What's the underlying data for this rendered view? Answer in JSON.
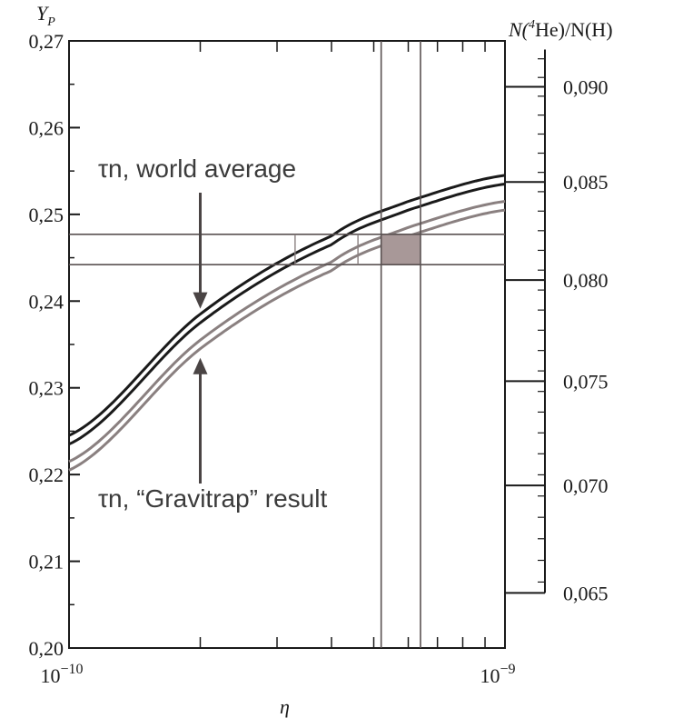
{
  "chart_data": {
    "type": "line",
    "x_scale": "log",
    "xlim": [
      1e-10,
      1e-09
    ],
    "ylim": [
      0.2,
      0.27
    ],
    "xlabel": "η",
    "ylabel": "Y_P",
    "y2label": "N(4He)/N(H)",
    "x_ticks": [
      {
        "value": 1e-10,
        "label": "10",
        "exp": "−10"
      },
      {
        "value": 1e-09,
        "label": "10",
        "exp": "−9"
      }
    ],
    "y_ticks": [
      "0,20",
      "0,21",
      "0,22",
      "0,23",
      "0,24",
      "0,25",
      "0,26",
      "0,27"
    ],
    "y_tick_values": [
      0.2,
      0.21,
      0.22,
      0.23,
      0.24,
      0.25,
      0.26,
      0.27
    ],
    "y2_ticks": [
      "0,065",
      "0,070",
      "0,075",
      "0,080",
      "0,085",
      "0,090"
    ],
    "y2_tick_values": [
      0.065,
      0.07,
      0.075,
      0.08,
      0.085,
      0.09
    ],
    "grid": false,
    "series": [
      {
        "color": "#1a1a1a",
        "x": [
          1e-10,
          2e-10,
          4e-10,
          6e-10,
          1e-09
        ],
        "values": [
          0.2245,
          0.2385,
          0.2475,
          0.2515,
          0.2545
        ]
      },
      {
        "color": "#1a1a1a",
        "x": [
          1e-10,
          2e-10,
          4e-10,
          6e-10,
          1e-09
        ],
        "values": [
          0.2235,
          0.2375,
          0.2465,
          0.2505,
          0.2535
        ]
      },
      {
        "color": "#8a8080",
        "x": [
          1e-10,
          2e-10,
          4e-10,
          6e-10,
          1e-09
        ],
        "values": [
          0.2215,
          0.2355,
          0.2445,
          0.2485,
          0.2515
        ]
      },
      {
        "color": "#8a8080",
        "x": [
          1e-10,
          2e-10,
          4e-10,
          6e-10,
          1e-09
        ],
        "values": [
          0.2205,
          0.2345,
          0.2435,
          0.2475,
          0.2505
        ]
      }
    ],
    "bands": {
      "y_lines": [
        0.2477,
        0.2442
      ],
      "x_lines": [
        5.2e-10,
        6.4e-10
      ],
      "shaded_region": {
        "x": [
          5.2e-10,
          6.4e-10
        ],
        "y": [
          0.2442,
          0.2477
        ],
        "color": "#a89898"
      }
    },
    "annotations": [
      {
        "text": "τn, world average",
        "arrow_to": {
          "x": 2e-10,
          "y": 0.2385
        }
      },
      {
        "text": "τn, “Gravitrap” result",
        "arrow_to": {
          "x": 2e-10,
          "y": 0.2345
        }
      }
    ]
  }
}
